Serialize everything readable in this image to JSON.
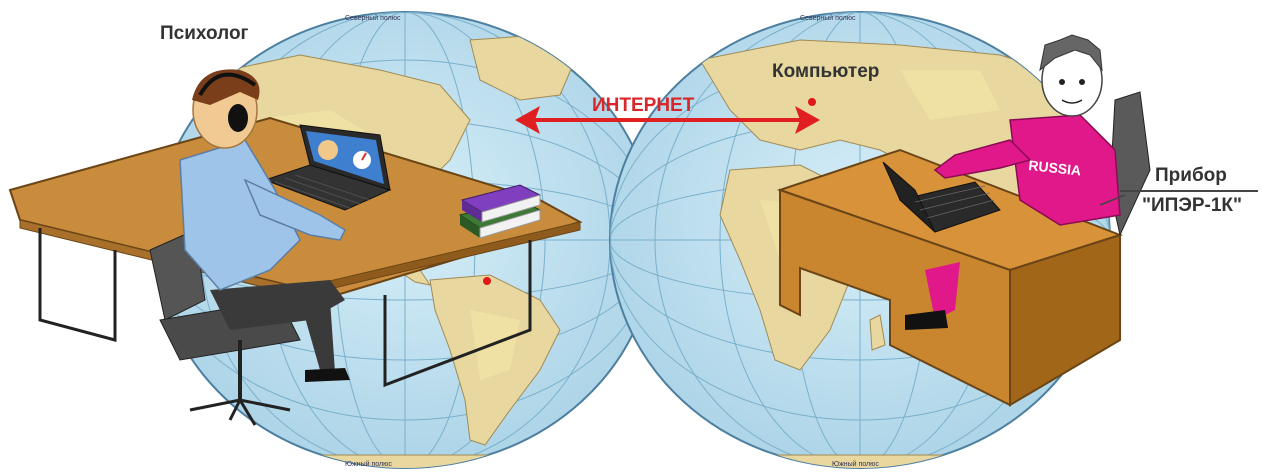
{
  "labels": {
    "psychologist": "Психолог",
    "computer": "Компьютер",
    "internet": "ИНТЕРНЕТ",
    "device_line1": "Прибор",
    "device_line2": "\"ИПЭР-1К\""
  },
  "map": {
    "north_pole_left": "Северный полюс",
    "north_pole_right": "Северный полюс",
    "south_pole_left": "Южный полюс",
    "south_pole_right": "Южный полюс"
  },
  "shirt_text": "RUSSIA",
  "colors": {
    "ocean": "#bfe0ef",
    "land": "#e9d9a3",
    "arrow": "#e02020",
    "desk": "#c98b3c",
    "shirt_psych": "#9fc4ea",
    "shirt_comp": "#e0188a",
    "books": "#7f3fbf"
  }
}
